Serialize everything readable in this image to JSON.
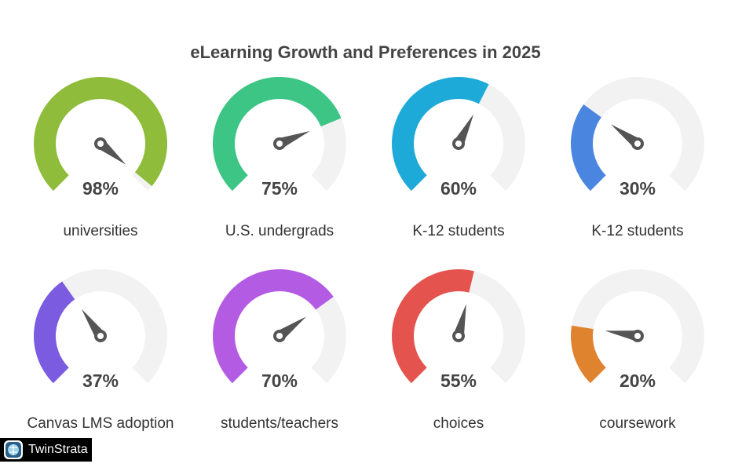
{
  "chart_data": {
    "type": "gauge",
    "title": "eLearning Growth and Preferences in 2025",
    "range": [
      0,
      100
    ],
    "track_color": "#F2F2F2",
    "gauges": [
      {
        "label": "universities",
        "value": 98,
        "display": "98%",
        "color": "#8FBC3A"
      },
      {
        "label": "U.S. undergrads",
        "value": 75,
        "display": "75%",
        "color": "#3CC584"
      },
      {
        "label": "K-12 students",
        "value": 60,
        "display": "60%",
        "color": "#1EAAD9"
      },
      {
        "label": "K-12 students",
        "value": 30,
        "display": "30%",
        "color": "#4A86E0"
      },
      {
        "label": "Canvas LMS adoption",
        "value": 37,
        "display": "37%",
        "color": "#7B5CE0"
      },
      {
        "label": "students/teachers",
        "value": 70,
        "display": "70%",
        "color": "#B45BE3"
      },
      {
        "label": "choices",
        "value": 55,
        "display": "55%",
        "color": "#E5534F"
      },
      {
        "label": "coursework",
        "value": 20,
        "display": "20%",
        "color": "#E0832E"
      }
    ]
  },
  "logo": {
    "text": "TwinStrata"
  }
}
